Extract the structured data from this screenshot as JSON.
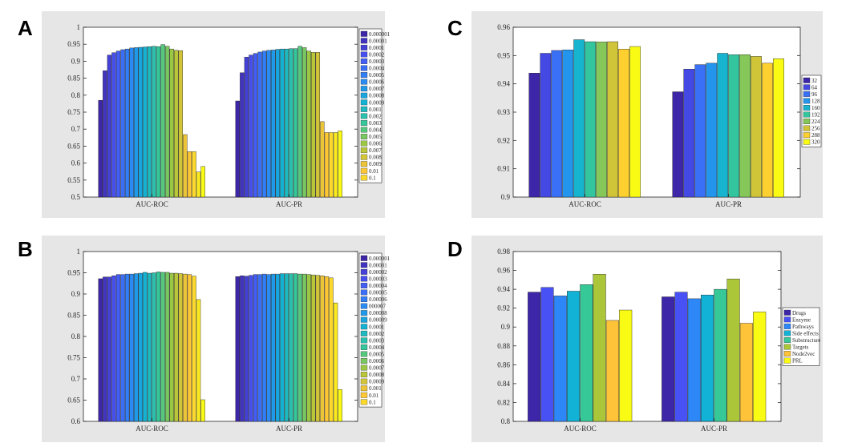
{
  "charts": [
    {
      "id": "A",
      "letter": "A",
      "chart_data": {
        "type": "bar",
        "categories": [
          "AUC-ROC",
          "AUC-PR"
        ],
        "ylim": [
          0.5,
          1
        ],
        "yticks": [
          "0.5",
          "0.55",
          "0.6",
          "0.65",
          "0.7",
          "0.75",
          "0.8",
          "0.85",
          "0.9",
          "0.95",
          "1"
        ],
        "legend_position": "right",
        "series": [
          {
            "name": "0.000001",
            "values": [
              0.785,
              0.783
            ]
          },
          {
            "name": "0.00001",
            "values": [
              0.872,
              0.866
            ]
          },
          {
            "name": "0.0001",
            "values": [
              0.918,
              0.912
            ]
          },
          {
            "name": "0.0002",
            "values": [
              0.925,
              0.918
            ]
          },
          {
            "name": "0.0003",
            "values": [
              0.93,
              0.923
            ]
          },
          {
            "name": "0.0004",
            "values": [
              0.934,
              0.927
            ]
          },
          {
            "name": "0.0005",
            "values": [
              0.936,
              0.93
            ]
          },
          {
            "name": "0.0006",
            "values": [
              0.939,
              0.932
            ]
          },
          {
            "name": "0.0007",
            "values": [
              0.94,
              0.933
            ]
          },
          {
            "name": "0.0008",
            "values": [
              0.941,
              0.935
            ]
          },
          {
            "name": "0.0009",
            "values": [
              0.942,
              0.936
            ]
          },
          {
            "name": "0.001",
            "values": [
              0.943,
              0.936
            ]
          },
          {
            "name": "0.002",
            "values": [
              0.944,
              0.937
            ]
          },
          {
            "name": "0.003",
            "values": [
              0.943,
              0.937
            ]
          },
          {
            "name": "0.004",
            "values": [
              0.949,
              0.944
            ]
          },
          {
            "name": "0.005",
            "values": [
              0.944,
              0.94
            ]
          },
          {
            "name": "0.006",
            "values": [
              0.936,
              0.93
            ]
          },
          {
            "name": "0.007",
            "values": [
              0.932,
              0.926
            ]
          },
          {
            "name": "0.008",
            "values": [
              0.931,
              0.926
            ]
          },
          {
            "name": "0.009",
            "values": [
              0.684,
              0.722
            ]
          },
          {
            "name": "0.01",
            "values": [
              0.634,
              0.69
            ]
          },
          {
            "name": "0.1",
            "values": [
              0.634,
              0.69
            ]
          },
          {
            "name": "",
            "values": [
              0.574,
              0.69
            ]
          },
          {
            "name": "",
            "values": [
              0.59,
              0.695
            ]
          }
        ]
      }
    },
    {
      "id": "B",
      "letter": "B",
      "chart_data": {
        "type": "bar",
        "categories": [
          "AUC-ROC",
          "AUC-PR"
        ],
        "ylim": [
          0.6,
          1
        ],
        "yticks": [
          "0.6",
          "0.65",
          "0.7",
          "0.75",
          "0.8",
          "0.85",
          "0.9",
          "0.95",
          "1"
        ],
        "legend_position": "right",
        "series": [
          {
            "name": "0.000001",
            "values": [
              0.936,
              0.941
            ]
          },
          {
            "name": "0.00001",
            "values": [
              0.94,
              0.943
            ]
          },
          {
            "name": "0.00002",
            "values": [
              0.94,
              0.942
            ]
          },
          {
            "name": "0.00003",
            "values": [
              0.943,
              0.944
            ]
          },
          {
            "name": "0.00004",
            "values": [
              0.946,
              0.946
            ]
          },
          {
            "name": "0.00005",
            "values": [
              0.946,
              0.946
            ]
          },
          {
            "name": "0.00006",
            "values": [
              0.947,
              0.947
            ]
          },
          {
            "name": "000007",
            "values": [
              0.947,
              0.946
            ]
          },
          {
            "name": "0.00008",
            "values": [
              0.948,
              0.947
            ]
          },
          {
            "name": "0.00009",
            "values": [
              0.949,
              0.947
            ]
          },
          {
            "name": "0.0001",
            "values": [
              0.951,
              0.948
            ]
          },
          {
            "name": "0.0002",
            "values": [
              0.949,
              0.948
            ]
          },
          {
            "name": "0.0003",
            "values": [
              0.95,
              0.948
            ]
          },
          {
            "name": "0.0004",
            "values": [
              0.952,
              0.948
            ]
          },
          {
            "name": "0.0005",
            "values": [
              0.951,
              0.947
            ]
          },
          {
            "name": "0.0006",
            "values": [
              0.951,
              0.947
            ]
          },
          {
            "name": "0.0007",
            "values": [
              0.949,
              0.946
            ]
          },
          {
            "name": "0.0008",
            "values": [
              0.949,
              0.945
            ]
          },
          {
            "name": "0.0009",
            "values": [
              0.948,
              0.944
            ]
          },
          {
            "name": "0.001",
            "values": [
              0.947,
              0.943
            ]
          },
          {
            "name": "0.01",
            "values": [
              0.946,
              0.941
            ]
          },
          {
            "name": "0.1",
            "values": [
              0.942,
              0.938
            ]
          },
          {
            "name": "",
            "values": [
              0.887,
              0.879
            ]
          },
          {
            "name": "",
            "values": [
              0.651,
              0.675
            ]
          }
        ]
      }
    },
    {
      "id": "C",
      "letter": "C",
      "chart_data": {
        "type": "bar",
        "categories": [
          "AUC-ROC",
          "AUC-PR"
        ],
        "ylim": [
          0.9,
          0.96
        ],
        "yticks": [
          "0.9",
          "0.91",
          "0.92",
          "0.93",
          "0.94",
          "0.95",
          "0.96"
        ],
        "legend_position": "right",
        "series": [
          {
            "name": "32",
            "values": [
              0.9438,
              0.9372
            ]
          },
          {
            "name": "64",
            "values": [
              0.9508,
              0.9452
            ]
          },
          {
            "name": "96",
            "values": [
              0.9518,
              0.9468
            ]
          },
          {
            "name": "128",
            "values": [
              0.952,
              0.9473
            ]
          },
          {
            "name": "160",
            "values": [
              0.9556,
              0.9508
            ]
          },
          {
            "name": "192",
            "values": [
              0.9549,
              0.9503
            ]
          },
          {
            "name": "224",
            "values": [
              0.9548,
              0.9503
            ]
          },
          {
            "name": "256",
            "values": [
              0.9549,
              0.9497
            ]
          },
          {
            "name": "288",
            "values": [
              0.9523,
              0.9473
            ]
          },
          {
            "name": "320",
            "values": [
              0.9532,
              0.9489
            ]
          }
        ]
      }
    },
    {
      "id": "D",
      "letter": "D",
      "chart_data": {
        "type": "bar",
        "categories": [
          "AUC-ROC",
          "AUC-PR"
        ],
        "ylim": [
          0.8,
          0.98
        ],
        "yticks": [
          "0.8",
          "0.82",
          "0.84",
          "0.86",
          "0.88",
          "0.9",
          "0.92",
          "0.94",
          "0.96",
          "0.98"
        ],
        "legend_position": "right",
        "series": [
          {
            "name": "Drugs",
            "values": [
              0.937,
              0.932
            ]
          },
          {
            "name": "Enzyme",
            "values": [
              0.942,
              0.937
            ]
          },
          {
            "name": "Pathways",
            "values": [
              0.933,
              0.93
            ]
          },
          {
            "name": "Side effects",
            "values": [
              0.938,
              0.934
            ]
          },
          {
            "name": "Substructure",
            "values": [
              0.945,
              0.94
            ]
          },
          {
            "name": "Targets",
            "values": [
              0.956,
              0.951
            ]
          },
          {
            "name": "Node2vec",
            "values": [
              0.907,
              0.904
            ]
          },
          {
            "name": "PRL",
            "values": [
              0.918,
              0.916
            ]
          }
        ]
      }
    }
  ]
}
